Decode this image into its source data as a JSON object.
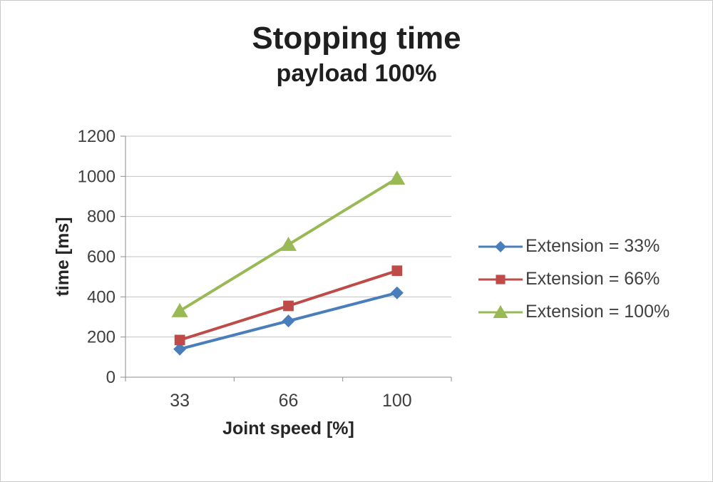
{
  "chart_data": {
    "type": "line",
    "title": "Stopping time",
    "subtitle": "payload 100%",
    "xlabel": "Joint speed [%]",
    "ylabel": "time [ms]",
    "categories": [
      "33",
      "66",
      "100"
    ],
    "series": [
      {
        "name": "Extension = 33%",
        "values": [
          140,
          280,
          420
        ],
        "color": "#4A7EBB",
        "marker": "diamond"
      },
      {
        "name": "Extension = 66%",
        "values": [
          185,
          355,
          530
        ],
        "color": "#BE4B48",
        "marker": "square"
      },
      {
        "name": "Extension = 100%",
        "values": [
          330,
          660,
          990
        ],
        "color": "#98B954",
        "marker": "triangle"
      }
    ],
    "ylim": [
      0,
      1200
    ],
    "yticks": [
      0,
      200,
      400,
      600,
      800,
      1000,
      1200
    ],
    "grid": true,
    "legend_position": "right",
    "style": {
      "grid_color": "#c3c3c3",
      "axis_color": "#8c8c8c",
      "tick_color": "#3f3f3f",
      "axis_title_color": "#262626",
      "legend_text_color": "#404040"
    }
  }
}
